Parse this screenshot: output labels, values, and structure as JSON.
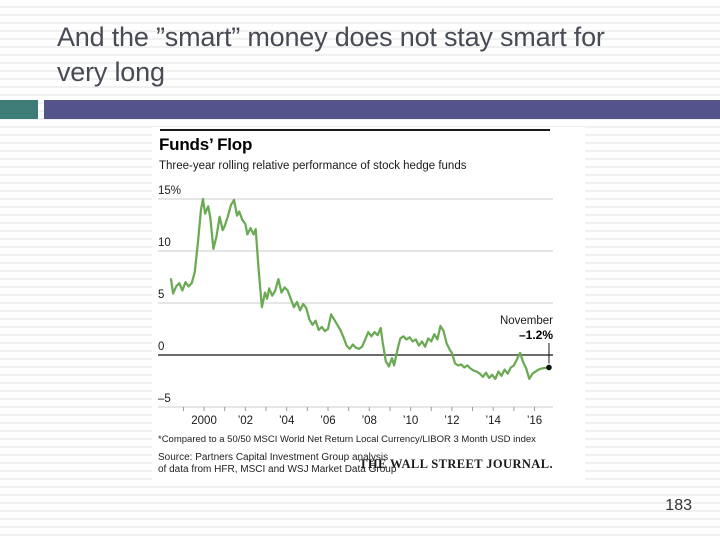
{
  "slide": {
    "title_line1": "And the ”smart” money does not stay smart for",
    "title_line2": "very long",
    "page_number": "183"
  },
  "chart": {
    "title": "Funds’ Flop",
    "subtitle": "Three-year rolling relative performance of stock hedge funds",
    "footnote": "*Compared to a 50/50 MSCI World Net Return Local Currency/LIBOR 3 Month USD index",
    "source_line1": "Source: Partners Capital Investment Group analysis",
    "source_line2": "of data from HFR, MSCI and WSJ Market Data Group",
    "logo": "THE WALL STREET JOURNAL."
  },
  "colors": {
    "accent_teal": "#3E7C78",
    "accent_purple": "#54538A",
    "line_green": "#6AAA53",
    "gridline": "#cccccc",
    "zero_line": "#3d3d3d"
  },
  "chart_data": {
    "type": "line",
    "title": "Funds’ Flop",
    "subtitle": "Three-year rolling relative performance of stock hedge funds",
    "unit": "%",
    "xlim": [
      1998.35,
      2016.75
    ],
    "ylim": [
      -5,
      15
    ],
    "grid": true,
    "color": "#6AAA53",
    "yticks": [
      {
        "v": 15,
        "label": "15%"
      },
      {
        "v": 10,
        "label": "10"
      },
      {
        "v": 5,
        "label": "5"
      },
      {
        "v": 0,
        "label": "0"
      },
      {
        "v": -5,
        "label": "–5"
      }
    ],
    "xticks": [
      {
        "v": 2000,
        "label": "2000"
      },
      {
        "v": 2002,
        "label": "’02"
      },
      {
        "v": 2004,
        "label": "’04"
      },
      {
        "v": 2006,
        "label": "’06"
      },
      {
        "v": 2008,
        "label": "’08"
      },
      {
        "v": 2010,
        "label": "’10"
      },
      {
        "v": 2012,
        "label": "’12"
      },
      {
        "v": 2014,
        "label": "’14"
      },
      {
        "v": 2016,
        "label": "’16"
      }
    ],
    "x": [
      1998.4,
      1998.5,
      1998.65,
      1998.8,
      1998.95,
      1999.1,
      1999.25,
      1999.4,
      1999.55,
      1999.7,
      1999.85,
      1999.95,
      2000.05,
      2000.2,
      2000.3,
      2000.45,
      2000.6,
      2000.75,
      2000.9,
      2001.0,
      2001.15,
      2001.3,
      2001.45,
      2001.6,
      2001.7,
      2001.85,
      2002.0,
      2002.1,
      2002.25,
      2002.4,
      2002.5,
      2002.65,
      2002.8,
      2002.95,
      2003.05,
      2003.15,
      2003.3,
      2003.45,
      2003.6,
      2003.75,
      2003.9,
      2004.05,
      2004.2,
      2004.35,
      2004.5,
      2004.65,
      2004.8,
      2004.95,
      2005.1,
      2005.25,
      2005.4,
      2005.55,
      2005.7,
      2005.85,
      2006.0,
      2006.15,
      2006.3,
      2006.45,
      2006.6,
      2006.75,
      2006.9,
      2007.05,
      2007.2,
      2007.35,
      2007.5,
      2007.65,
      2007.8,
      2007.95,
      2008.1,
      2008.25,
      2008.4,
      2008.55,
      2008.65,
      2008.8,
      2008.95,
      2009.1,
      2009.2,
      2009.35,
      2009.5,
      2009.65,
      2009.8,
      2009.95,
      2010.1,
      2010.25,
      2010.4,
      2010.55,
      2010.7,
      2010.85,
      2011.0,
      2011.15,
      2011.3,
      2011.45,
      2011.6,
      2011.75,
      2011.9,
      2012.0,
      2012.15,
      2012.3,
      2012.45,
      2012.6,
      2012.75,
      2012.9,
      2013.05,
      2013.2,
      2013.35,
      2013.5,
      2013.65,
      2013.8,
      2013.95,
      2014.1,
      2014.25,
      2014.4,
      2014.55,
      2014.7,
      2014.85,
      2015.0,
      2015.15,
      2015.3,
      2015.45,
      2015.6,
      2015.75,
      2015.9,
      2016.05,
      2016.2,
      2016.35,
      2016.5,
      2016.7
    ],
    "y": [
      7.3,
      5.9,
      6.6,
      6.9,
      6.2,
      7.0,
      6.6,
      6.9,
      8.0,
      10.8,
      14.0,
      15.0,
      13.6,
      14.3,
      13.2,
      10.2,
      11.4,
      13.3,
      12.0,
      12.4,
      13.3,
      14.4,
      14.9,
      13.4,
      13.8,
      13.0,
      12.6,
      11.6,
      12.2,
      11.6,
      12.1,
      8.0,
      4.6,
      6.0,
      5.4,
      6.4,
      5.7,
      6.2,
      7.3,
      6.0,
      6.5,
      6.2,
      5.4,
      4.6,
      5.1,
      4.3,
      4.9,
      4.5,
      3.4,
      2.9,
      3.3,
      2.4,
      2.7,
      2.3,
      2.5,
      3.9,
      3.4,
      2.9,
      2.4,
      1.7,
      0.9,
      0.6,
      1.0,
      0.7,
      0.6,
      0.8,
      1.5,
      2.2,
      1.8,
      2.2,
      1.9,
      2.6,
      1.2,
      -0.6,
      -1.1,
      -0.3,
      -1.0,
      0.4,
      1.6,
      1.8,
      1.5,
      1.7,
      1.3,
      1.5,
      0.9,
      1.3,
      0.8,
      1.6,
      1.3,
      2.0,
      1.5,
      2.8,
      2.3,
      1.1,
      0.5,
      0.2,
      -0.8,
      -1.0,
      -0.9,
      -1.2,
      -1.0,
      -1.3,
      -1.5,
      -1.6,
      -1.8,
      -2.1,
      -1.7,
      -2.2,
      -1.9,
      -2.3,
      -1.6,
      -2.0,
      -1.4,
      -1.8,
      -1.2,
      -1.0,
      -0.4,
      0.2,
      -0.7,
      -1.3,
      -2.3,
      -1.8,
      -1.6,
      -1.4,
      -1.3,
      -1.25,
      -1.2
    ],
    "annotation": {
      "x": 2016.7,
      "y": -1.2,
      "label": "November",
      "value_label": "–1.2%"
    }
  }
}
